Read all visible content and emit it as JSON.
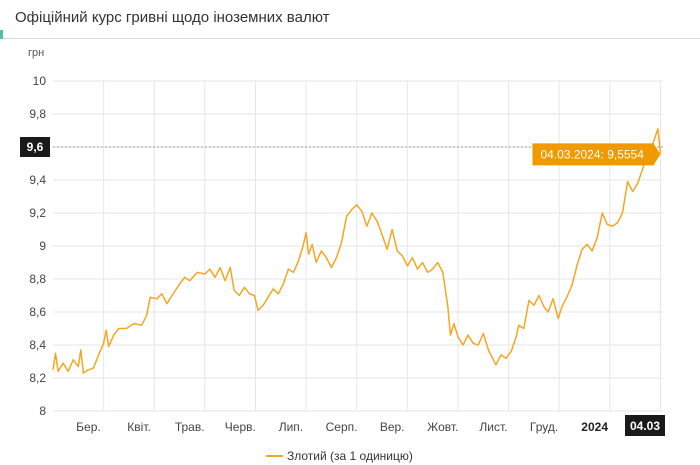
{
  "header": {
    "title": "Офіційний курс гривні щодо іноземних валют"
  },
  "colors": {
    "series": "#f5a623",
    "tooltip_bg": "#f09a00",
    "current_box": "#1a1a1a",
    "grid": "#e6e6e6",
    "header_accent": "#4cc3a7"
  },
  "chart_data": {
    "type": "line",
    "title": "",
    "ylabel": "грн",
    "xlabel": "",
    "ylim": [
      8,
      10
    ],
    "y_ticks": [
      "10",
      "9,8",
      "9,6",
      "9,4",
      "9,2",
      "9",
      "8,8",
      "8,6",
      "8,4",
      "8,2",
      "8"
    ],
    "x_labels": [
      {
        "label": "Бер.",
        "t": 0.7,
        "bold": false
      },
      {
        "label": "Квіт.",
        "t": 1.7,
        "bold": false
      },
      {
        "label": "Трав.",
        "t": 2.7,
        "bold": false
      },
      {
        "label": "Черв.",
        "t": 3.7,
        "bold": false
      },
      {
        "label": "Лип.",
        "t": 4.7,
        "bold": false
      },
      {
        "label": "Серп.",
        "t": 5.7,
        "bold": false
      },
      {
        "label": "Вер.",
        "t": 6.7,
        "bold": false
      },
      {
        "label": "Жовт.",
        "t": 7.7,
        "bold": false
      },
      {
        "label": "Лист.",
        "t": 8.7,
        "bold": false
      },
      {
        "label": "Груд.",
        "t": 9.7,
        "bold": false
      },
      {
        "label": "2024",
        "t": 10.7,
        "bold": true
      }
    ],
    "x_domain": [
      0,
      12.05
    ],
    "series": [
      {
        "name": "Злотий (за 1 одиницю)",
        "points": [
          [
            0.0,
            8.25
          ],
          [
            0.05,
            8.35
          ],
          [
            0.1,
            8.24
          ],
          [
            0.2,
            8.29
          ],
          [
            0.3,
            8.24
          ],
          [
            0.4,
            8.31
          ],
          [
            0.5,
            8.27
          ],
          [
            0.55,
            8.37
          ],
          [
            0.6,
            8.23
          ],
          [
            0.7,
            8.25
          ],
          [
            0.8,
            8.26
          ],
          [
            0.9,
            8.34
          ],
          [
            1.0,
            8.41
          ],
          [
            1.05,
            8.49
          ],
          [
            1.1,
            8.39
          ],
          [
            1.2,
            8.46
          ],
          [
            1.3,
            8.5
          ],
          [
            1.45,
            8.5
          ],
          [
            1.6,
            8.53
          ],
          [
            1.75,
            8.52
          ],
          [
            1.85,
            8.58
          ],
          [
            1.92,
            8.69
          ],
          [
            2.05,
            8.68
          ],
          [
            2.15,
            8.71
          ],
          [
            2.25,
            8.65
          ],
          [
            2.35,
            8.7
          ],
          [
            2.5,
            8.77
          ],
          [
            2.6,
            8.81
          ],
          [
            2.7,
            8.79
          ],
          [
            2.85,
            8.84
          ],
          [
            3.0,
            8.83
          ],
          [
            3.1,
            8.86
          ],
          [
            3.2,
            8.81
          ],
          [
            3.3,
            8.87
          ],
          [
            3.4,
            8.79
          ],
          [
            3.5,
            8.87
          ],
          [
            3.58,
            8.73
          ],
          [
            3.68,
            8.7
          ],
          [
            3.78,
            8.75
          ],
          [
            3.88,
            8.71
          ],
          [
            3.98,
            8.7
          ],
          [
            4.05,
            8.61
          ],
          [
            4.15,
            8.64
          ],
          [
            4.25,
            8.69
          ],
          [
            4.35,
            8.74
          ],
          [
            4.45,
            8.71
          ],
          [
            4.55,
            8.77
          ],
          [
            4.65,
            8.86
          ],
          [
            4.75,
            8.84
          ],
          [
            4.85,
            8.91
          ],
          [
            4.93,
            8.99
          ],
          [
            5.0,
            9.08
          ],
          [
            5.05,
            8.95
          ],
          [
            5.12,
            9.01
          ],
          [
            5.2,
            8.9
          ],
          [
            5.3,
            8.97
          ],
          [
            5.4,
            8.93
          ],
          [
            5.5,
            8.87
          ],
          [
            5.6,
            8.93
          ],
          [
            5.7,
            9.02
          ],
          [
            5.8,
            9.18
          ],
          [
            5.9,
            9.22
          ],
          [
            6.0,
            9.25
          ],
          [
            6.1,
            9.21
          ],
          [
            6.2,
            9.12
          ],
          [
            6.3,
            9.2
          ],
          [
            6.4,
            9.15
          ],
          [
            6.5,
            9.07
          ],
          [
            6.6,
            8.98
          ],
          [
            6.7,
            9.1
          ],
          [
            6.8,
            8.97
          ],
          [
            6.9,
            8.94
          ],
          [
            7.0,
            8.88
          ],
          [
            7.1,
            8.93
          ],
          [
            7.2,
            8.86
          ],
          [
            7.3,
            8.9
          ],
          [
            7.4,
            8.84
          ],
          [
            7.5,
            8.86
          ],
          [
            7.6,
            8.9
          ],
          [
            7.7,
            8.84
          ],
          [
            7.8,
            8.63
          ],
          [
            7.85,
            8.46
          ],
          [
            7.92,
            8.53
          ],
          [
            8.0,
            8.45
          ],
          [
            8.1,
            8.4
          ],
          [
            8.2,
            8.46
          ],
          [
            8.3,
            8.41
          ],
          [
            8.4,
            8.4
          ],
          [
            8.5,
            8.47
          ],
          [
            8.6,
            8.37
          ],
          [
            8.7,
            8.31
          ],
          [
            8.75,
            8.28
          ],
          [
            8.85,
            8.34
          ],
          [
            8.95,
            8.32
          ],
          [
            9.05,
            8.36
          ],
          [
            9.15,
            8.45
          ],
          [
            9.2,
            8.52
          ],
          [
            9.3,
            8.5
          ],
          [
            9.4,
            8.67
          ],
          [
            9.5,
            8.64
          ],
          [
            9.6,
            8.7
          ],
          [
            9.7,
            8.63
          ],
          [
            9.78,
            8.6
          ],
          [
            9.88,
            8.68
          ],
          [
            9.98,
            8.56
          ],
          [
            10.05,
            8.63
          ],
          [
            10.15,
            8.69
          ],
          [
            10.25,
            8.76
          ],
          [
            10.35,
            8.88
          ],
          [
            10.45,
            8.98
          ],
          [
            10.55,
            9.01
          ],
          [
            10.65,
            8.97
          ],
          [
            10.75,
            9.05
          ],
          [
            10.85,
            9.2
          ],
          [
            10.95,
            9.13
          ],
          [
            11.05,
            9.12
          ],
          [
            11.15,
            9.14
          ],
          [
            11.25,
            9.2
          ],
          [
            11.35,
            9.39
          ],
          [
            11.45,
            9.33
          ],
          [
            11.55,
            9.38
          ],
          [
            11.65,
            9.47
          ],
          [
            11.75,
            9.55
          ],
          [
            11.85,
            9.62
          ],
          [
            11.95,
            9.71
          ],
          [
            12.0,
            9.56
          ]
        ]
      }
    ],
    "current": {
      "y_label": "9,6",
      "x_label": "04.03"
    },
    "tooltip": {
      "text": "04.03.2024: 9,5554",
      "value": 9.5554
    },
    "legend": {
      "position": "bottom-center"
    },
    "grid": true
  }
}
